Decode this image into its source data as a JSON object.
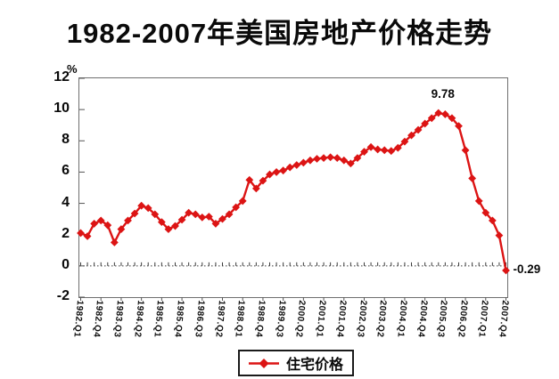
{
  "title": "1982-2007年美国房地产价格走势",
  "y_axis_unit": "%",
  "legend": {
    "label": "住宅价格",
    "marker": "red-diamond-line"
  },
  "colors": {
    "line": "#dc1414",
    "plot_border": "#6f6f6f",
    "axis_text": "#0a0a0a",
    "zero_line": "#3a3a3a"
  },
  "chart_data": {
    "type": "line",
    "title": "1982-2007年美国房地产价格走势",
    "ylabel": "%",
    "ylim": [
      -2,
      12
    ],
    "y_ticks": [
      12,
      10,
      8,
      6,
      4,
      2,
      0,
      -2
    ],
    "grid": false,
    "zero_line_style": "dotted-with-ticks",
    "legend_position": "bottom-center",
    "x_label_every_n_points": 3,
    "x_tick_labels": [
      "1982.Q1",
      "1982.Q4",
      "1983.Q3",
      "1984.Q2",
      "1985.Q1",
      "1985.Q4",
      "1986.Q3",
      "1987.Q2",
      "1988.Q1",
      "1988.Q4",
      "1989.Q3",
      "2000.Q2",
      "2001.Q1",
      "2001.Q4",
      "2002.Q3",
      "2003.Q2",
      "2004.Q1",
      "2004.Q4",
      "2005.Q3",
      "2006.Q2",
      "2007.Q1",
      "2007.Q4"
    ],
    "series": [
      {
        "name": "住宅价格",
        "color": "#dc1414",
        "marker": "diamond",
        "values": [
          2.1,
          1.9,
          2.7,
          2.9,
          2.6,
          1.5,
          2.35,
          2.9,
          3.35,
          3.85,
          3.7,
          3.3,
          2.8,
          2.35,
          2.55,
          2.95,
          3.4,
          3.3,
          3.1,
          3.15,
          2.7,
          3.0,
          3.3,
          3.75,
          4.15,
          5.5,
          4.95,
          5.45,
          5.85,
          6.0,
          6.1,
          6.3,
          6.45,
          6.6,
          6.75,
          6.85,
          6.9,
          6.95,
          6.9,
          6.75,
          6.55,
          6.9,
          7.3,
          7.6,
          7.45,
          7.4,
          7.35,
          7.55,
          7.95,
          8.35,
          8.7,
          9.1,
          9.45,
          9.78,
          9.7,
          9.45,
          8.95,
          7.4,
          5.6,
          4.15,
          3.4,
          2.9,
          1.95,
          -0.29
        ]
      }
    ],
    "annotations": [
      {
        "text": "9.78",
        "point_index": 53,
        "position": "above"
      },
      {
        "text": "-0.29",
        "point_index": 63,
        "position": "right"
      }
    ]
  }
}
